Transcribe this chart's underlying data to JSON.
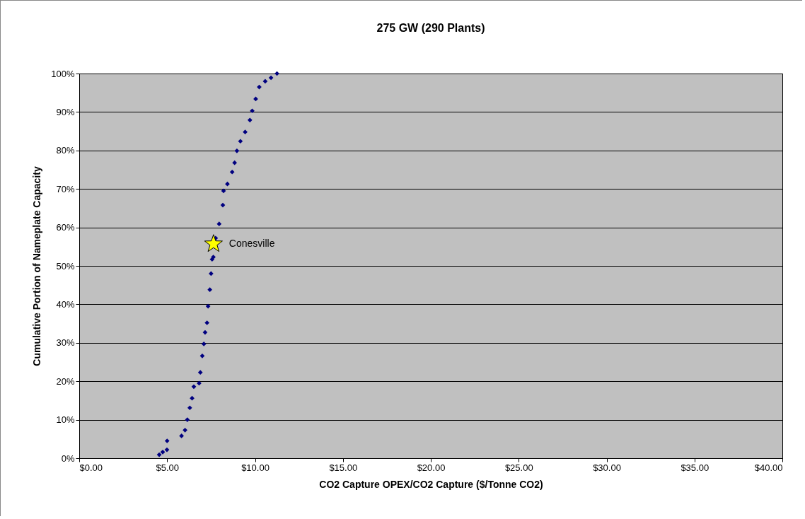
{
  "chart_data": {
    "type": "scatter",
    "title": "275 GW (290 Plants)",
    "xlabel": "CO2 Capture OPEX/CO2 Capture ($/Tonne CO2)",
    "ylabel": "Cumulative Portion of Nameplate Capacity",
    "series": [
      {
        "color": "#000080",
        "marker": "diamond",
        "x": [
          4.55,
          4.75,
          4.99,
          5.0,
          5.82,
          6.02,
          6.15,
          6.29,
          6.42,
          6.52,
          6.82,
          6.89,
          7.0,
          7.09,
          7.16,
          7.27,
          7.33,
          7.43,
          7.5,
          7.56,
          7.63,
          7.76,
          7.96,
          8.17,
          8.21,
          8.43,
          8.7,
          8.84,
          8.97,
          9.17,
          9.44,
          9.71,
          9.84,
          10.04,
          10.24,
          10.58,
          10.91,
          11.25
        ],
        "values": [
          0.9,
          1.6,
          2.2,
          4.5,
          5.8,
          7.3,
          10,
          13.1,
          15.6,
          18.6,
          19.5,
          22.3,
          26.6,
          29.7,
          32.7,
          35.2,
          39.5,
          43.8,
          48,
          51.7,
          52.3,
          57.2,
          60.9,
          65.8,
          69.5,
          71.3,
          74.4,
          76.8,
          79.9,
          82.4,
          84.8,
          87.9,
          90.3,
          93.4,
          96.5,
          98,
          98.9,
          100
        ]
      },
      {
        "color": "#ffff00",
        "marker": "star",
        "x": [
          7.64
        ],
        "values": [
          55.7
        ]
      }
    ],
    "annotations": [
      {
        "text": "Conesville",
        "x": 7.64,
        "y": 55.7
      }
    ],
    "xlim": [
      0,
      40
    ],
    "xticks": [
      {
        "value": 0,
        "label": "$0.00"
      },
      {
        "value": 5,
        "label": "$5.00"
      },
      {
        "value": 10,
        "label": "$10.00"
      },
      {
        "value": 15,
        "label": "$15.00"
      },
      {
        "value": 20,
        "label": "$20.00"
      },
      {
        "value": 25,
        "label": "$25.00"
      },
      {
        "value": 30,
        "label": "$30.00"
      },
      {
        "value": 35,
        "label": "$35.00"
      },
      {
        "value": 40,
        "label": "$40.00"
      }
    ],
    "ylim": [
      0,
      100
    ],
    "yticks": [
      {
        "value": 0,
        "label": "0%"
      },
      {
        "value": 10,
        "label": "10%"
      },
      {
        "value": 20,
        "label": "20%"
      },
      {
        "value": 30,
        "label": "30%"
      },
      {
        "value": 40,
        "label": "40%"
      },
      {
        "value": 50,
        "label": "50%"
      },
      {
        "value": 60,
        "label": "60%"
      },
      {
        "value": 70,
        "label": "70%"
      },
      {
        "value": 80,
        "label": "80%"
      },
      {
        "value": 90,
        "label": "90%"
      },
      {
        "value": 100,
        "label": "100%"
      }
    ],
    "grid": "y"
  }
}
